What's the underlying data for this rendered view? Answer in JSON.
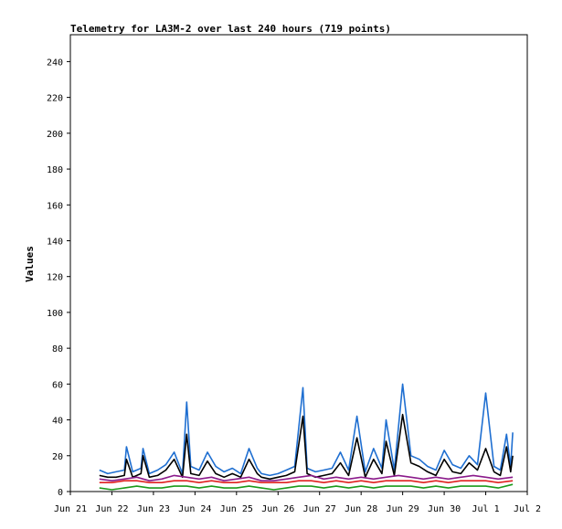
{
  "chart_data": {
    "type": "line",
    "title": "Telemetry for LA3M-2 over last 240 hours (719 points)",
    "xlabel": "",
    "ylabel": "Values",
    "x_tick_labels": [
      "Jun 21",
      "Jun 22",
      "Jun 23",
      "Jun 24",
      "Jun 25",
      "Jun 26",
      "Jun 27",
      "Jun 28",
      "Jun 29",
      "Jun 30",
      "Jul 1",
      "Jul 2"
    ],
    "x_range_days": [
      0,
      11
    ],
    "ylim": [
      0,
      255
    ],
    "y_ticks": [
      0,
      20,
      40,
      60,
      80,
      100,
      120,
      140,
      160,
      180,
      200,
      220,
      240
    ],
    "grid": false,
    "legend": "none",
    "series": [
      {
        "color": "#1f6fd1",
        "x": [
          0.7,
          0.9,
          1.1,
          1.3,
          1.35,
          1.5,
          1.7,
          1.75,
          1.9,
          2.1,
          2.3,
          2.5,
          2.7,
          2.8,
          2.9,
          3.1,
          3.3,
          3.5,
          3.7,
          3.9,
          4.1,
          4.3,
          4.5,
          4.6,
          4.8,
          5.0,
          5.2,
          5.4,
          5.6,
          5.7,
          5.9,
          6.1,
          6.3,
          6.5,
          6.7,
          6.9,
          7.1,
          7.3,
          7.5,
          7.6,
          7.8,
          8.0,
          8.2,
          8.4,
          8.6,
          8.8,
          9.0,
          9.2,
          9.4,
          9.6,
          9.8,
          10.0,
          10.2,
          10.35,
          10.5,
          10.6,
          10.65
        ],
        "values": [
          12,
          10,
          11,
          12,
          25,
          11,
          13,
          24,
          10,
          12,
          15,
          22,
          10,
          50,
          14,
          12,
          22,
          14,
          11,
          13,
          10,
          24,
          13,
          10,
          9,
          10,
          12,
          14,
          58,
          13,
          11,
          12,
          13,
          22,
          12,
          42,
          11,
          24,
          13,
          40,
          12,
          60,
          20,
          18,
          14,
          12,
          23,
          15,
          13,
          20,
          15,
          55,
          14,
          12,
          32,
          14,
          33
        ]
      },
      {
        "color": "#000000",
        "x": [
          0.7,
          0.9,
          1.1,
          1.3,
          1.35,
          1.5,
          1.7,
          1.75,
          1.9,
          2.1,
          2.3,
          2.5,
          2.7,
          2.8,
          2.9,
          3.1,
          3.3,
          3.5,
          3.7,
          3.9,
          4.1,
          4.3,
          4.5,
          4.6,
          4.8,
          5.0,
          5.2,
          5.4,
          5.6,
          5.7,
          5.9,
          6.1,
          6.3,
          6.5,
          6.7,
          6.9,
          7.1,
          7.3,
          7.5,
          7.6,
          7.8,
          8.0,
          8.2,
          8.4,
          8.6,
          8.8,
          9.0,
          9.2,
          9.4,
          9.6,
          9.8,
          10.0,
          10.2,
          10.35,
          10.5,
          10.6,
          10.65
        ],
        "values": [
          9,
          8,
          8,
          9,
          18,
          8,
          10,
          20,
          8,
          9,
          12,
          18,
          8,
          32,
          10,
          9,
          17,
          10,
          8,
          10,
          8,
          18,
          10,
          8,
          7,
          8,
          9,
          11,
          42,
          10,
          8,
          9,
          10,
          16,
          9,
          30,
          8,
          18,
          10,
          28,
          9,
          43,
          16,
          14,
          11,
          9,
          18,
          11,
          10,
          16,
          12,
          24,
          11,
          9,
          25,
          11,
          20
        ]
      },
      {
        "color": "#8b1a8b",
        "x": [
          0.7,
          1.0,
          1.3,
          1.6,
          1.9,
          2.2,
          2.5,
          2.8,
          3.1,
          3.4,
          3.7,
          4.0,
          4.3,
          4.6,
          4.9,
          5.2,
          5.5,
          5.8,
          6.1,
          6.4,
          6.7,
          7.0,
          7.3,
          7.6,
          7.9,
          8.2,
          8.5,
          8.8,
          9.1,
          9.4,
          9.7,
          10.0,
          10.3,
          10.65
        ],
        "values": [
          7,
          6,
          7,
          8,
          6,
          7,
          9,
          8,
          7,
          8,
          6,
          7,
          8,
          6,
          6,
          7,
          8,
          9,
          7,
          8,
          7,
          8,
          7,
          8,
          9,
          8,
          7,
          8,
          7,
          8,
          9,
          8,
          7,
          8
        ]
      },
      {
        "color": "#e02020",
        "x": [
          0.7,
          1.0,
          1.3,
          1.6,
          1.9,
          2.2,
          2.5,
          2.8,
          3.1,
          3.4,
          3.7,
          4.0,
          4.3,
          4.6,
          4.9,
          5.2,
          5.5,
          5.8,
          6.1,
          6.4,
          6.7,
          7.0,
          7.3,
          7.6,
          7.9,
          8.2,
          8.5,
          8.8,
          9.1,
          9.4,
          9.7,
          10.0,
          10.3,
          10.65
        ],
        "values": [
          5,
          5,
          6,
          6,
          5,
          5,
          6,
          6,
          5,
          6,
          5,
          5,
          6,
          5,
          5,
          5,
          6,
          6,
          5,
          6,
          5,
          6,
          5,
          6,
          6,
          6,
          5,
          6,
          5,
          6,
          6,
          6,
          5,
          6
        ]
      },
      {
        "color": "#1a9a1a",
        "x": [
          0.7,
          1.0,
          1.3,
          1.6,
          1.9,
          2.2,
          2.5,
          2.8,
          3.1,
          3.4,
          3.7,
          4.0,
          4.3,
          4.6,
          4.9,
          5.2,
          5.5,
          5.8,
          6.1,
          6.4,
          6.7,
          7.0,
          7.3,
          7.6,
          7.9,
          8.2,
          8.5,
          8.8,
          9.1,
          9.4,
          9.7,
          10.0,
          10.3,
          10.65
        ],
        "values": [
          2,
          1,
          2,
          3,
          2,
          2,
          3,
          3,
          2,
          3,
          2,
          2,
          3,
          2,
          1,
          2,
          3,
          3,
          2,
          3,
          2,
          3,
          2,
          3,
          3,
          3,
          2,
          3,
          2,
          3,
          3,
          3,
          2,
          4
        ]
      }
    ]
  }
}
